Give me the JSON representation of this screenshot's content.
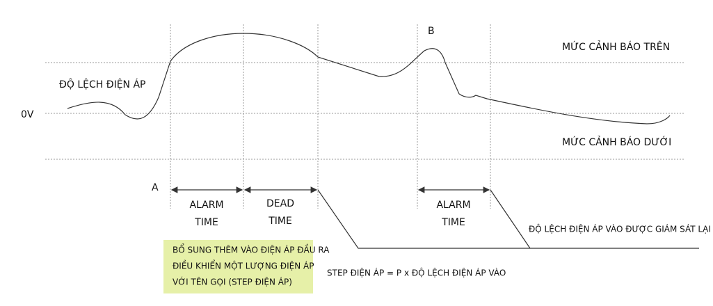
{
  "labels": {
    "zero": "0V",
    "deviation": "ĐỘ LỆCH ĐIỆN ÁP",
    "upper": "MỨC CẢNH BÁO TRÊN",
    "lower": "MỨC CẢNH BÁO DƯỚI",
    "point_a": "A",
    "point_b": "B",
    "resume": "ĐỘ LỆCH ĐIỆN ÁP VÀO ĐƯỢC GIÁM SÁT LẠI",
    "step_formula": "STEP ĐIỆN ÁP = P x ĐỘ LỆCH ĐIỆN ÁP VÀO"
  },
  "intervals": [
    {
      "lines": [
        "ALARM",
        "TIME"
      ]
    },
    {
      "lines": [
        "DEAD",
        "TIME"
      ]
    },
    {
      "lines": [
        "ALARM",
        "TIME"
      ]
    }
  ],
  "note": {
    "lines": [
      "BỔ SUNG THÊM VÀO ĐIỆN ÁP ĐẦU RA",
      "ĐIỀU KHIỂN MỘT LƯỢNG ĐIỆN ÁP",
      "VỚI TÊN GỌI (STEP ĐIỆN ÁP)"
    ]
  }
}
